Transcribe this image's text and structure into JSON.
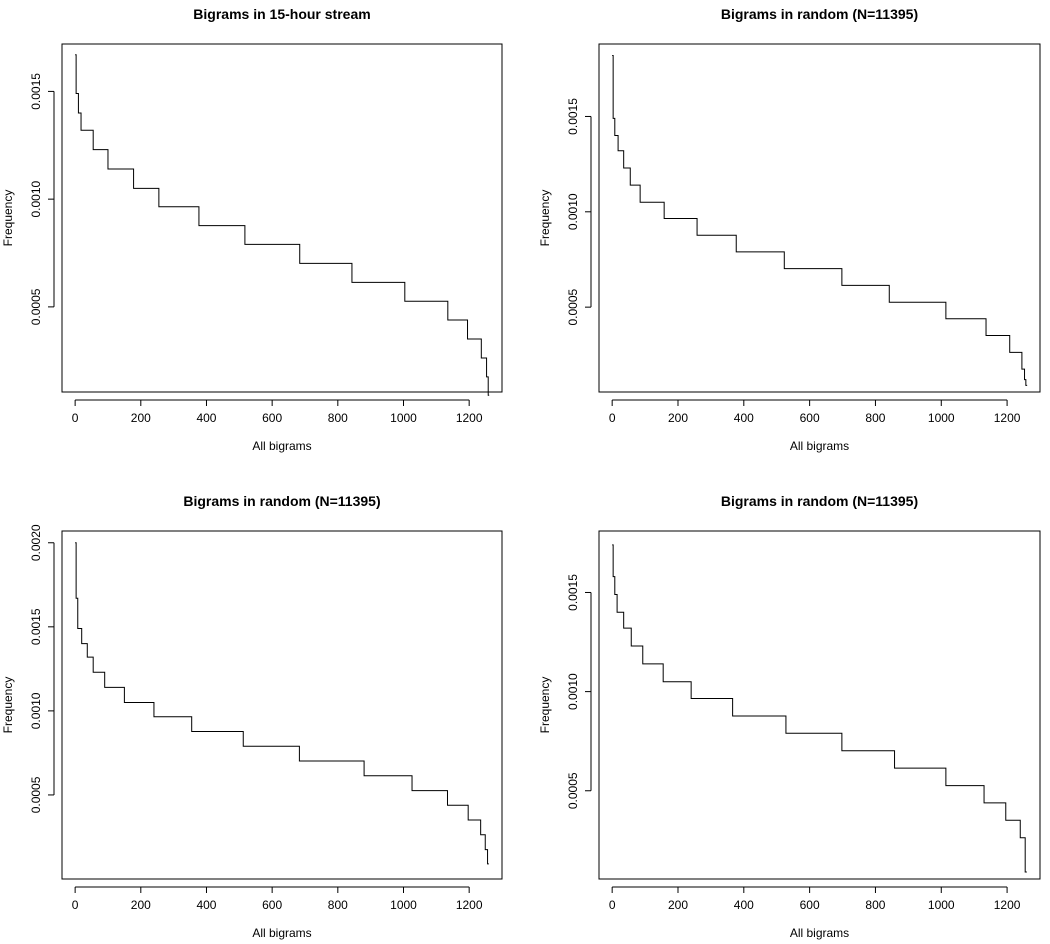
{
  "chart_data": [
    {
      "type": "line",
      "title": "Bigrams in 15-hour stream",
      "xlabel": "All bigrams",
      "ylabel": "Frequency",
      "xlim": [
        -40,
        1300
      ],
      "ylim": [
        0.000105,
        0.00172
      ],
      "xticks": [
        0,
        200,
        400,
        600,
        800,
        1000,
        1200
      ],
      "xtick_labels": [
        "0",
        "200",
        "400",
        "600",
        "800",
        "1000",
        "1200"
      ],
      "yticks": [
        0.0005,
        0.001,
        0.0015
      ],
      "ytick_labels": [
        "0.0005",
        "0.0010",
        "0.0015"
      ],
      "series": [
        {
          "x": [
            0,
            3,
            3,
            10,
            10,
            18,
            18,
            55,
            55,
            100,
            100,
            178,
            178,
            255,
            255,
            377,
            377,
            517,
            517,
            684,
            684,
            843,
            843,
            1004,
            1004,
            1135,
            1135,
            1195,
            1195,
            1237,
            1237,
            1253,
            1253,
            1258,
            1258,
            1261
          ],
          "y": [
            0.00167,
            0.00167,
            0.00149,
            0.00149,
            0.0014,
            0.0014,
            0.00132,
            0.00132,
            0.00123,
            0.00123,
            0.00114,
            0.00114,
            0.00105,
            0.00105,
            0.000965,
            0.000965,
            0.000877,
            0.000877,
            0.00079,
            0.00079,
            0.000702,
            0.000702,
            0.000614,
            0.000614,
            0.000526,
            0.000526,
            0.000439,
            0.000439,
            0.000351,
            0.000351,
            0.000263,
            0.000263,
            0.000175,
            0.000175,
            9e-05,
            9e-05
          ]
        }
      ]
    },
    {
      "type": "line",
      "title": "Bigrams in random (N=11395)",
      "xlabel": "All bigrams",
      "ylabel": "Frequency",
      "xlim": [
        -40,
        1300
      ],
      "ylim": [
        5.5e-05,
        0.00188
      ],
      "xticks": [
        0,
        200,
        400,
        600,
        800,
        1000,
        1200
      ],
      "xtick_labels": [
        "0",
        "200",
        "400",
        "600",
        "800",
        "1000",
        "1200"
      ],
      "yticks": [
        0.0005,
        0.001,
        0.0015
      ],
      "ytick_labels": [
        "0.0005",
        "0.0010",
        "0.0015"
      ],
      "series": [
        {
          "x": [
            0,
            3,
            3,
            8,
            8,
            18,
            18,
            35,
            35,
            55,
            55,
            85,
            85,
            158,
            158,
            258,
            258,
            377,
            377,
            523,
            523,
            698,
            698,
            842,
            842,
            1014,
            1014,
            1136,
            1136,
            1208,
            1208,
            1245,
            1245,
            1253,
            1253,
            1257,
            1257,
            1261
          ],
          "y": [
            0.00182,
            0.00182,
            0.00149,
            0.00149,
            0.0014,
            0.0014,
            0.00132,
            0.00132,
            0.00123,
            0.00123,
            0.00114,
            0.00114,
            0.00105,
            0.00105,
            0.000965,
            0.000965,
            0.000877,
            0.000877,
            0.00079,
            0.00079,
            0.000702,
            0.000702,
            0.000614,
            0.000614,
            0.000526,
            0.000526,
            0.000439,
            0.000439,
            0.000351,
            0.000351,
            0.000263,
            0.000263,
            0.000175,
            0.000175,
            0.00012,
            0.00012,
            9e-05,
            9e-05
          ]
        }
      ]
    },
    {
      "type": "line",
      "title": "Bigrams in random (N=11395)",
      "xlabel": "All bigrams",
      "ylabel": "Frequency",
      "xlim": [
        -40,
        1300
      ],
      "ylim": [
        0.0,
        0.00207
      ],
      "xticks": [
        0,
        200,
        400,
        600,
        800,
        1000,
        1200
      ],
      "xtick_labels": [
        "0",
        "200",
        "400",
        "600",
        "800",
        "1000",
        "1200"
      ],
      "yticks": [
        0.0005,
        0.001,
        0.0015,
        0.002
      ],
      "ytick_labels": [
        "0.0005",
        "0.0010",
        "0.0015",
        "0.0020"
      ],
      "series": [
        {
          "x": [
            0,
            3,
            3,
            8,
            8,
            20,
            20,
            37,
            37,
            55,
            55,
            90,
            90,
            150,
            150,
            240,
            240,
            355,
            355,
            512,
            512,
            683,
            683,
            880,
            880,
            1026,
            1026,
            1134,
            1134,
            1197,
            1197,
            1235,
            1235,
            1249,
            1249,
            1256,
            1256,
            1260
          ],
          "y": [
            0.002,
            0.002,
            0.00167,
            0.00167,
            0.00149,
            0.00149,
            0.0014,
            0.0014,
            0.00132,
            0.00132,
            0.00123,
            0.00123,
            0.00114,
            0.00114,
            0.00105,
            0.00105,
            0.000965,
            0.000965,
            0.000877,
            0.000877,
            0.00079,
            0.00079,
            0.000702,
            0.000702,
            0.000614,
            0.000614,
            0.000526,
            0.000526,
            0.000439,
            0.000439,
            0.000351,
            0.000351,
            0.000263,
            0.000263,
            0.000175,
            0.000175,
            9e-05,
            9e-05
          ]
        }
      ]
    },
    {
      "type": "line",
      "title": "Bigrams in random (N=11395)",
      "xlabel": "All bigrams",
      "ylabel": "Frequency",
      "xlim": [
        -40,
        1300
      ],
      "ylim": [
        5.5e-05,
        0.00181
      ],
      "xticks": [
        0,
        200,
        400,
        600,
        800,
        1000,
        1200
      ],
      "xtick_labels": [
        "0",
        "200",
        "400",
        "600",
        "800",
        "1000",
        "1200"
      ],
      "yticks": [
        0.0005,
        0.001,
        0.0015
      ],
      "ytick_labels": [
        "0.0005",
        "0.0010",
        "0.0015"
      ],
      "series": [
        {
          "x": [
            0,
            3,
            3,
            8,
            8,
            15,
            15,
            35,
            35,
            58,
            58,
            93,
            93,
            155,
            155,
            240,
            240,
            366,
            366,
            528,
            528,
            698,
            698,
            858,
            858,
            1014,
            1014,
            1130,
            1130,
            1196,
            1196,
            1240,
            1240,
            1255,
            1255,
            1260
          ],
          "y": [
            0.00174,
            0.00174,
            0.00158,
            0.00158,
            0.00149,
            0.00149,
            0.0014,
            0.0014,
            0.00132,
            0.00132,
            0.00123,
            0.00123,
            0.00114,
            0.00114,
            0.00105,
            0.00105,
            0.000965,
            0.000965,
            0.000877,
            0.000877,
            0.00079,
            0.00079,
            0.000702,
            0.000702,
            0.000614,
            0.000614,
            0.000526,
            0.000526,
            0.000439,
            0.000439,
            0.000351,
            0.000351,
            0.000263,
            0.000263,
            9e-05,
            9e-05
          ]
        }
      ]
    }
  ]
}
